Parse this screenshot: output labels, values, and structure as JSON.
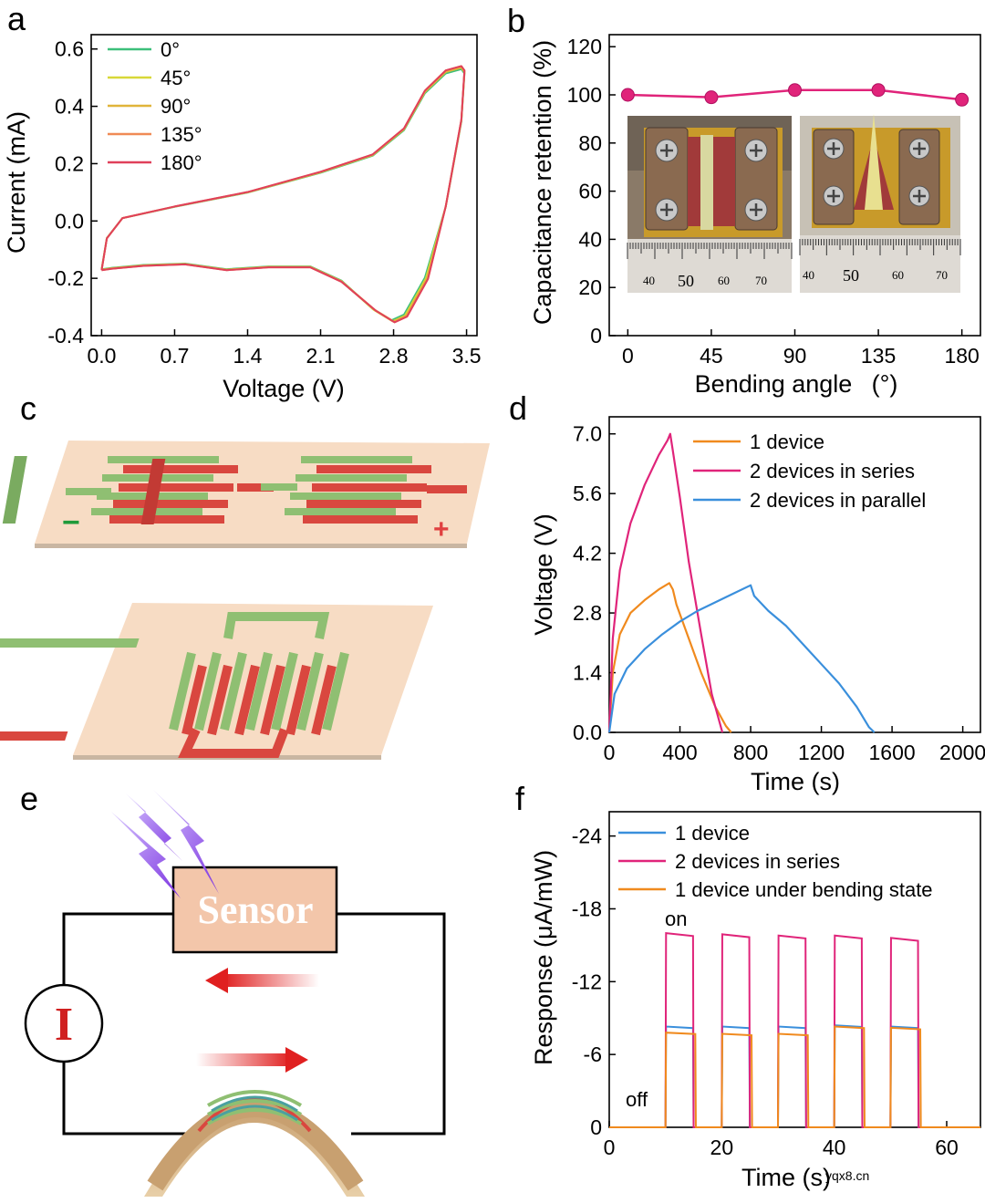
{
  "panels": {
    "a": {
      "label": "a",
      "xlabel": "Voltage (V)",
      "ylabel": "Current (mA)"
    },
    "b": {
      "label": "b",
      "xlabel": "Bending angle",
      "xlabel_unit": "(°)",
      "ylabel": "Capacitance retention (%)",
      "ruler_left": [
        "40",
        "50",
        "60",
        "70"
      ],
      "ruler_right": [
        "40",
        "50",
        "60",
        "70"
      ]
    },
    "c": {
      "label": "c",
      "minus": "−",
      "plus": "+"
    },
    "d": {
      "label": "d",
      "xlabel": "Time (s)",
      "ylabel": "Voltage (V)"
    },
    "e": {
      "label": "e",
      "sensor": "Sensor",
      "meter": "I"
    },
    "f": {
      "label": "f",
      "xlabel": "Time (s)",
      "ylabel": "Response (μA/mW)",
      "on": "on",
      "off": "off"
    }
  },
  "watermark": "yqx8.cn",
  "colors": {
    "green": "#3cbf7a",
    "yellow": "#d8d838",
    "gold": "#e0b43a",
    "orange": "#f08a55",
    "crimson": "#e0405a",
    "magenta": "#e0247a",
    "blue": "#3a8fdc",
    "orange2": "#f08a1e"
  },
  "chart_data": [
    {
      "panel": "a",
      "type": "line",
      "xlabel": "Voltage (V)",
      "ylabel": "Current (mA)",
      "xlim": [
        -0.1,
        3.6
      ],
      "ylim": [
        -0.4,
        0.65
      ],
      "xticks": [
        "0.0",
        "0.7",
        "1.4",
        "2.1",
        "2.8",
        "3.5"
      ],
      "yticks": [
        "0.6",
        "0.4",
        "0.2",
        "0.0",
        "-0.2",
        "-0.4"
      ],
      "xtick_values": [
        0,
        0.7,
        1.4,
        2.1,
        2.8,
        3.5
      ],
      "ytick_values": [
        0.6,
        0.4,
        0.2,
        0.0,
        -0.2,
        -0.4
      ],
      "legend_position": "top-left",
      "series": [
        {
          "name": "0°",
          "color": "#3cbf7a",
          "scale": 0.99,
          "shift": 0.0,
          "x": [
            0.0,
            0.05,
            0.2,
            0.7,
            1.4,
            2.1,
            2.6,
            2.9,
            3.1,
            3.3,
            3.45,
            3.48,
            3.45,
            3.3,
            3.1,
            2.9,
            2.78,
            2.6,
            2.3,
            2.0,
            1.6,
            1.2,
            0.8,
            0.4,
            0.1,
            0.0
          ],
          "y": [
            -0.17,
            -0.06,
            0.01,
            0.05,
            0.1,
            0.17,
            0.23,
            0.32,
            0.45,
            0.52,
            0.535,
            0.52,
            0.35,
            0.05,
            -0.2,
            -0.33,
            -0.35,
            -0.31,
            -0.21,
            -0.16,
            -0.16,
            -0.17,
            -0.15,
            -0.155,
            -0.165,
            -0.17
          ]
        },
        {
          "name": "45°",
          "color": "#d8d838",
          "scale": 1.0,
          "shift": 0.01,
          "x": [
            0.0,
            0.05,
            0.2,
            0.7,
            1.4,
            2.1,
            2.6,
            2.9,
            3.1,
            3.3,
            3.45,
            3.48,
            3.45,
            3.3,
            3.1,
            2.9,
            2.78,
            2.6,
            2.3,
            2.0,
            1.6,
            1.2,
            0.8,
            0.4,
            0.1,
            0.0
          ],
          "y": [
            -0.17,
            -0.06,
            0.01,
            0.05,
            0.1,
            0.17,
            0.23,
            0.32,
            0.45,
            0.52,
            0.535,
            0.52,
            0.35,
            0.05,
            -0.2,
            -0.33,
            -0.35,
            -0.31,
            -0.21,
            -0.16,
            -0.16,
            -0.17,
            -0.15,
            -0.155,
            -0.165,
            -0.17
          ]
        },
        {
          "name": "90°",
          "color": "#e0b43a",
          "scale": 1.0,
          "shift": 0.02,
          "x": [
            0.0,
            0.05,
            0.2,
            0.7,
            1.4,
            2.1,
            2.6,
            2.9,
            3.1,
            3.3,
            3.45,
            3.48,
            3.45,
            3.3,
            3.1,
            2.9,
            2.78,
            2.6,
            2.3,
            2.0,
            1.6,
            1.2,
            0.8,
            0.4,
            0.1,
            0.0
          ],
          "y": [
            -0.17,
            -0.06,
            0.01,
            0.05,
            0.1,
            0.17,
            0.23,
            0.32,
            0.45,
            0.52,
            0.535,
            0.52,
            0.35,
            0.05,
            -0.2,
            -0.33,
            -0.35,
            -0.31,
            -0.21,
            -0.16,
            -0.16,
            -0.17,
            -0.15,
            -0.155,
            -0.165,
            -0.17
          ]
        },
        {
          "name": "135°",
          "color": "#f08a55",
          "scale": 1.01,
          "shift": 0.03,
          "x": [
            0.0,
            0.05,
            0.2,
            0.7,
            1.4,
            2.1,
            2.6,
            2.9,
            3.1,
            3.3,
            3.45,
            3.48,
            3.45,
            3.3,
            3.1,
            2.9,
            2.78,
            2.6,
            2.3,
            2.0,
            1.6,
            1.2,
            0.8,
            0.4,
            0.1,
            0.0
          ],
          "y": [
            -0.17,
            -0.06,
            0.01,
            0.05,
            0.1,
            0.17,
            0.23,
            0.32,
            0.45,
            0.52,
            0.535,
            0.52,
            0.35,
            0.05,
            -0.2,
            -0.33,
            -0.35,
            -0.31,
            -0.21,
            -0.16,
            -0.16,
            -0.17,
            -0.15,
            -0.155,
            -0.165,
            -0.17
          ]
        },
        {
          "name": "180°",
          "color": "#e0405a",
          "scale": 1.01,
          "shift": 0.03,
          "x": [
            0.0,
            0.05,
            0.2,
            0.7,
            1.4,
            2.1,
            2.6,
            2.9,
            3.1,
            3.3,
            3.45,
            3.48,
            3.45,
            3.3,
            3.1,
            2.9,
            2.78,
            2.6,
            2.3,
            2.0,
            1.6,
            1.2,
            0.8,
            0.4,
            0.1,
            0.0
          ],
          "y": [
            -0.17,
            -0.06,
            0.01,
            0.05,
            0.1,
            0.17,
            0.23,
            0.32,
            0.45,
            0.52,
            0.535,
            0.52,
            0.35,
            0.05,
            -0.2,
            -0.33,
            -0.35,
            -0.31,
            -0.21,
            -0.16,
            -0.16,
            -0.17,
            -0.15,
            -0.155,
            -0.165,
            -0.17
          ]
        }
      ]
    },
    {
      "panel": "b",
      "type": "line",
      "xlabel": "Bending angle (°)",
      "ylabel": "Capacitance retention (%)",
      "xlim": [
        -10,
        190
      ],
      "ylim": [
        0,
        125
      ],
      "xticks": [
        "0",
        "45",
        "90",
        "135",
        "180"
      ],
      "xtick_values": [
        0,
        45,
        90,
        135,
        180
      ],
      "yticks": [
        "0",
        "20",
        "40",
        "60",
        "80",
        "100",
        "120"
      ],
      "ytick_values": [
        0,
        20,
        40,
        60,
        80,
        100,
        120
      ],
      "series": [
        {
          "color": "#e0247a",
          "x": [
            0,
            45,
            90,
            135,
            180
          ],
          "y": [
            100,
            99,
            102,
            102,
            98
          ]
        }
      ]
    },
    {
      "panel": "d",
      "type": "line",
      "xlabel": "Time (s)",
      "ylabel": "Voltage (V)",
      "xlim": [
        0,
        2100
      ],
      "ylim": [
        0,
        7.4
      ],
      "xticks": [
        "0",
        "400",
        "800",
        "1200",
        "1600",
        "2000"
      ],
      "xtick_values": [
        0,
        400,
        800,
        1200,
        1600,
        2000
      ],
      "yticks": [
        "0.0",
        "1.4",
        "2.8",
        "4.2",
        "5.6",
        "7.0"
      ],
      "ytick_values": [
        0,
        1.4,
        2.8,
        4.2,
        5.6,
        7.0
      ],
      "legend_position": "top-right",
      "series": [
        {
          "name": "1 device",
          "color": "#f08a1e",
          "x": [
            0,
            20,
            60,
            120,
            200,
            280,
            340,
            360,
            380,
            450,
            520,
            600,
            660,
            690
          ],
          "y": [
            0,
            1.4,
            2.3,
            2.8,
            3.1,
            3.35,
            3.5,
            3.35,
            3.0,
            2.2,
            1.4,
            0.6,
            0.15,
            0
          ]
        },
        {
          "name": "2 devices in series",
          "color": "#e0247a",
          "x": [
            0,
            20,
            60,
            120,
            200,
            280,
            330,
            345,
            360,
            400,
            450,
            520,
            580,
            640
          ],
          "y": [
            0,
            2.2,
            3.8,
            4.9,
            5.8,
            6.5,
            6.85,
            7.0,
            6.6,
            5.5,
            4.0,
            2.3,
            0.9,
            0
          ]
        },
        {
          "name": "2 devices in parallel",
          "color": "#3a8fdc",
          "x": [
            0,
            30,
            100,
            200,
            300,
            400,
            500,
            600,
            700,
            800,
            820,
            900,
            1000,
            1100,
            1200,
            1300,
            1400,
            1470,
            1500
          ],
          "y": [
            0,
            0.9,
            1.5,
            1.95,
            2.3,
            2.6,
            2.85,
            3.05,
            3.25,
            3.45,
            3.2,
            2.85,
            2.5,
            2.05,
            1.6,
            1.15,
            0.6,
            0.12,
            0
          ]
        }
      ]
    },
    {
      "panel": "f",
      "type": "line",
      "xlabel": "Time (s)",
      "ylabel": "Response (μA/mW)",
      "xlim": [
        0,
        66
      ],
      "ylim": [
        0,
        -26
      ],
      "xticks": [
        "0",
        "20",
        "40",
        "60"
      ],
      "xtick_values": [
        0,
        20,
        40,
        60
      ],
      "yticks": [
        "0",
        "-6",
        "-12",
        "-18",
        "-24"
      ],
      "ytick_values": [
        0,
        -6,
        -12,
        -18,
        -24
      ],
      "legend_position": "top-left",
      "pulses": {
        "period": 10,
        "start": 10,
        "width": 5,
        "count": 5
      },
      "series": [
        {
          "name": "1 device",
          "color": "#3a8fdc",
          "on_values": [
            -8.3,
            -8.3,
            -8.3,
            -8.4,
            -8.3
          ]
        },
        {
          "name": "2 devices in series",
          "color": "#e0247a",
          "on_values": [
            -16.0,
            -15.9,
            -15.8,
            -15.8,
            -15.6
          ]
        },
        {
          "name": "1 device under bending state",
          "color": "#f08a1e",
          "on_values": [
            -7.8,
            -7.7,
            -7.7,
            -8.3,
            -8.2
          ]
        }
      ]
    }
  ]
}
